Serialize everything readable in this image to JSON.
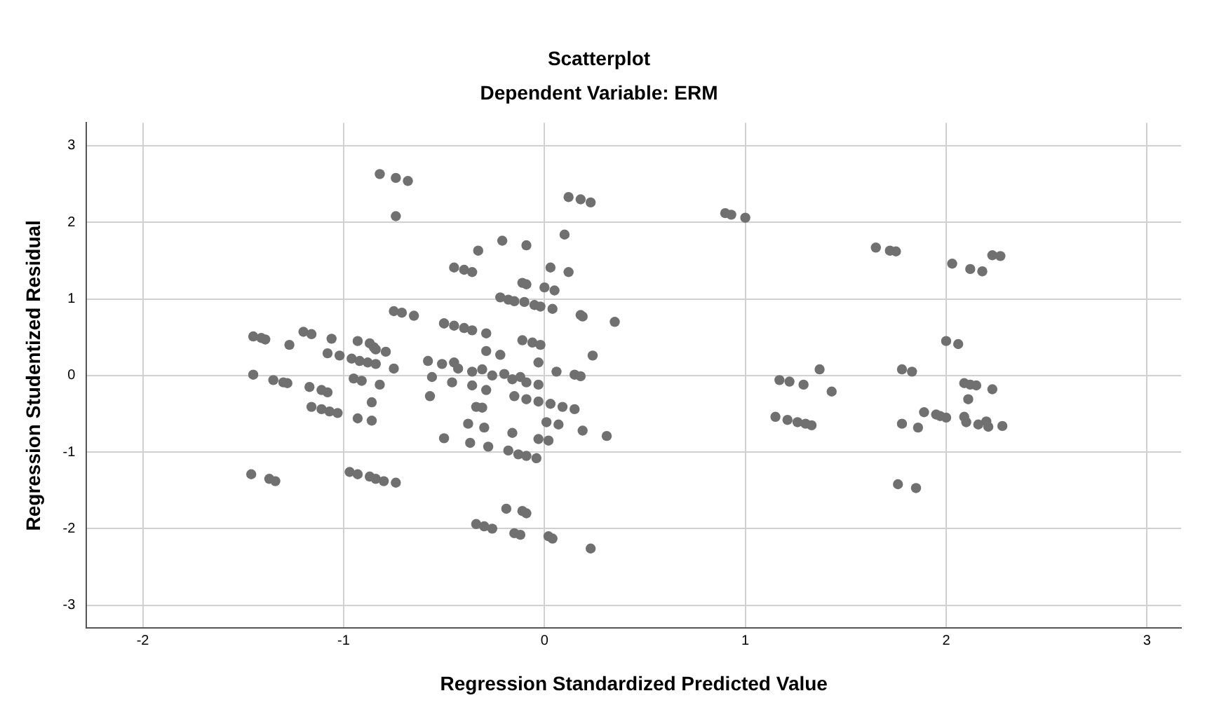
{
  "chart_data": {
    "type": "scatter",
    "title": "Scatterplot",
    "subtitle": "Dependent Variable: ERM",
    "xlabel": "Regression Standardized Predicted Value",
    "ylabel": "Regression Studentized Residual",
    "x": [
      -0.82,
      -0.74,
      -0.68,
      -0.74,
      -0.75,
      -0.71,
      -0.65,
      -0.5,
      -1.45,
      -1.41,
      -1.39,
      -1.27,
      -1.2,
      -1.16,
      -1.06,
      -1.08,
      -1.02,
      -0.93,
      -0.87,
      -0.85,
      -0.84,
      -0.79,
      -0.96,
      -0.92,
      -0.88,
      -0.84,
      -0.75,
      -0.58,
      -0.51,
      -1.45,
      -1.35,
      -1.3,
      -1.28,
      -1.17,
      -1.11,
      -1.08,
      -0.95,
      -0.91,
      -0.82,
      -0.56,
      -0.57,
      -0.86,
      -1.16,
      -1.11,
      -1.07,
      -1.03,
      -0.93,
      -0.86,
      -0.5,
      -1.46,
      -1.37,
      -1.34,
      -0.97,
      -0.93,
      -0.87,
      -0.84,
      -0.8,
      -0.74,
      0.12,
      0.18,
      0.23,
      0.1,
      -0.21,
      -0.09,
      -0.33,
      -0.45,
      -0.4,
      -0.36,
      0.03,
      0.12,
      -0.11,
      -0.09,
      0.0,
      0.05,
      -0.22,
      -0.18,
      -0.15,
      -0.1,
      -0.05,
      -0.02,
      0.04,
      0.18,
      0.19,
      0.35,
      -0.5,
      -0.45,
      -0.4,
      -0.36,
      -0.29,
      -0.11,
      -0.06,
      -0.02,
      -0.29,
      -0.22,
      0.24,
      -0.45,
      -0.43,
      -0.36,
      -0.31,
      -0.26,
      -0.2,
      -0.16,
      -0.12,
      -0.09,
      -0.03,
      -0.03,
      0.06,
      0.15,
      0.18,
      -0.46,
      -0.36,
      -0.29,
      -0.15,
      -0.09,
      -0.03,
      0.03,
      0.09,
      0.15,
      -0.34,
      -0.31,
      -0.38,
      -0.3,
      0.01,
      0.07,
      -0.16,
      0.19,
      0.31,
      -0.03,
      0.02,
      -0.37,
      -0.28,
      -0.18,
      -0.13,
      -0.09,
      -0.04,
      -0.19,
      -0.11,
      -0.09,
      -0.34,
      -0.3,
      -0.26,
      -0.15,
      -0.12,
      0.02,
      0.04,
      0.23,
      0.9,
      0.93,
      1.0,
      1.65,
      1.72,
      1.75,
      2.03,
      2.12,
      2.18,
      2.23,
      2.27,
      2.0,
      2.06,
      1.37,
      1.78,
      1.83,
      1.17,
      1.22,
      1.29,
      1.43,
      2.09,
      2.12,
      2.15,
      2.23,
      2.11,
      1.15,
      1.21,
      1.26,
      1.3,
      1.33,
      1.78,
      1.86,
      1.89,
      1.95,
      1.97,
      2.0,
      2.09,
      2.1,
      2.16,
      2.2,
      2.21,
      2.28,
      1.76,
      1.85
    ],
    "values": [
      2.63,
      2.58,
      2.54,
      2.08,
      0.84,
      0.82,
      0.78,
      0.68,
      0.51,
      0.49,
      0.47,
      0.4,
      0.57,
      0.54,
      0.48,
      0.29,
      0.26,
      0.45,
      0.42,
      0.37,
      0.34,
      0.31,
      0.22,
      0.19,
      0.17,
      0.15,
      0.09,
      0.19,
      0.15,
      0.01,
      -0.06,
      -0.09,
      -0.1,
      -0.15,
      -0.19,
      -0.22,
      -0.04,
      -0.07,
      -0.12,
      -0.02,
      -0.27,
      -0.35,
      -0.41,
      -0.44,
      -0.47,
      -0.49,
      -0.56,
      -0.59,
      -0.82,
      -1.29,
      -1.35,
      -1.38,
      -1.26,
      -1.29,
      -1.32,
      -1.35,
      -1.38,
      -1.4,
      2.33,
      2.3,
      2.26,
      1.84,
      1.76,
      1.7,
      1.63,
      1.41,
      1.38,
      1.35,
      1.41,
      1.35,
      1.21,
      1.19,
      1.15,
      1.11,
      1.02,
      0.99,
      0.97,
      0.96,
      0.92,
      0.9,
      0.87,
      0.79,
      0.77,
      0.7,
      0.68,
      0.65,
      0.62,
      0.59,
      0.55,
      0.46,
      0.43,
      0.4,
      0.32,
      0.27,
      0.26,
      0.17,
      0.09,
      0.05,
      0.08,
      0.0,
      0.02,
      -0.05,
      -0.02,
      -0.09,
      -0.12,
      0.17,
      0.05,
      0.01,
      -0.01,
      -0.09,
      -0.13,
      -0.19,
      -0.27,
      -0.31,
      -0.34,
      -0.37,
      -0.41,
      -0.44,
      -0.41,
      -0.42,
      -0.63,
      -0.68,
      -0.61,
      -0.64,
      -0.75,
      -0.72,
      -0.79,
      -0.83,
      -0.85,
      -0.88,
      -0.93,
      -0.98,
      -1.03,
      -1.05,
      -1.08,
      -1.74,
      -1.77,
      -1.8,
      -1.94,
      -1.97,
      -2.0,
      -2.06,
      -2.08,
      -2.1,
      -2.13,
      -2.26,
      2.12,
      2.1,
      2.06,
      1.67,
      1.63,
      1.62,
      1.46,
      1.39,
      1.36,
      1.57,
      1.56,
      0.45,
      0.41,
      0.08,
      0.08,
      0.05,
      -0.06,
      -0.08,
      -0.12,
      -0.21,
      -0.1,
      -0.12,
      -0.13,
      -0.18,
      -0.31,
      -0.54,
      -0.58,
      -0.61,
      -0.63,
      -0.65,
      -0.63,
      -0.68,
      -0.48,
      -0.51,
      -0.53,
      -0.55,
      -0.54,
      -0.61,
      -0.64,
      -0.6,
      -0.67,
      -0.66,
      -1.42,
      -1.47
    ],
    "color": "#707070",
    "marker": "circle",
    "xlim": [
      -2.28,
      3.17
    ],
    "ylim": [
      -3.3,
      3.3
    ],
    "xticks": [
      -2,
      -1,
      0,
      1,
      2,
      3
    ],
    "yticks": [
      -3,
      -2,
      -1,
      0,
      1,
      2,
      3
    ],
    "grid": true
  }
}
